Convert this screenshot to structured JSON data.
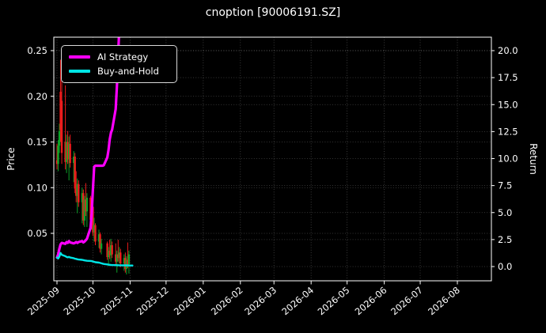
{
  "title": "cnoption [90006191.SZ]",
  "legend": {
    "items": [
      {
        "label": "AI Strategy",
        "color": "#ff00ff"
      },
      {
        "label": "Buy-and-Hold",
        "color": "#00e5e5"
      }
    ]
  },
  "axes": {
    "left_label": "Price",
    "right_label": "Return"
  },
  "colors": {
    "background": "#000000",
    "text": "#ffffff",
    "spine": "#ffffff",
    "grid": "#ffffff",
    "ai_strategy": "#ff00ff",
    "buy_and_hold": "#00e5e5",
    "candle_up": "#0ca328",
    "candle_down": "#ee1c1c"
  },
  "chart_data": {
    "type": "line",
    "title": "cnoption [90006191.SZ]",
    "xlabel": "",
    "ylabel_left": "Price",
    "ylabel_right": "Return",
    "grid": true,
    "legend_position": "upper left",
    "ylim_left": [
      0.0,
      0.265
    ],
    "ylim_right": [
      -1.3,
      21.2
    ],
    "yticks_left": [
      {
        "value": 0.05,
        "label": "0.05"
      },
      {
        "value": 0.1,
        "label": "0.10"
      },
      {
        "value": 0.15,
        "label": "0.15"
      },
      {
        "value": 0.2,
        "label": "0.20"
      },
      {
        "value": 0.25,
        "label": "0.25"
      }
    ],
    "yticks_right": [
      {
        "value": 0.0,
        "label": "0.0"
      },
      {
        "value": 2.5,
        "label": "2.5"
      },
      {
        "value": 5.0,
        "label": "5.0"
      },
      {
        "value": 7.5,
        "label": "7.5"
      },
      {
        "value": 10.0,
        "label": "10.0"
      },
      {
        "value": 12.5,
        "label": "12.5"
      },
      {
        "value": 15.0,
        "label": "15.0"
      },
      {
        "value": 17.5,
        "label": "17.5"
      },
      {
        "value": 20.0,
        "label": "20.0"
      }
    ],
    "x_ticks": [
      {
        "date": "2025-09-01",
        "label": "2025-09"
      },
      {
        "date": "2025-10-01",
        "label": "2025-10"
      },
      {
        "date": "2025-11-01",
        "label": "2025-11"
      },
      {
        "date": "2025-12-01",
        "label": "2025-12"
      },
      {
        "date": "2026-01-01",
        "label": "2026-01"
      },
      {
        "date": "2026-02-01",
        "label": "2026-02"
      },
      {
        "date": "2026-03-01",
        "label": "2026-03"
      },
      {
        "date": "2026-04-01",
        "label": "2026-04"
      },
      {
        "date": "2026-05-01",
        "label": "2026-05"
      },
      {
        "date": "2026-06-01",
        "label": "2026-06"
      },
      {
        "date": "2026-07-01",
        "label": "2026-07"
      },
      {
        "date": "2026-08-01",
        "label": "2026-08"
      }
    ],
    "series": [
      {
        "name": "AI Strategy",
        "color": "#ff00ff",
        "width": 3.2,
        "axis": "left",
        "points": [
          [
            "2025-09-01",
            0.0235
          ],
          [
            "2025-09-02",
            0.027
          ],
          [
            "2025-09-03",
            0.033
          ],
          [
            "2025-09-04",
            0.038
          ],
          [
            "2025-09-05",
            0.0395
          ],
          [
            "2025-09-08",
            0.0385
          ],
          [
            "2025-09-09",
            0.0405
          ],
          [
            "2025-09-10",
            0.0395
          ],
          [
            "2025-09-11",
            0.0415
          ],
          [
            "2025-09-12",
            0.04
          ],
          [
            "2025-09-15",
            0.039
          ],
          [
            "2025-09-16",
            0.0395
          ],
          [
            "2025-09-17",
            0.0405
          ],
          [
            "2025-09-18",
            0.0395
          ],
          [
            "2025-09-19",
            0.0405
          ],
          [
            "2025-09-22",
            0.0415
          ],
          [
            "2025-09-23",
            0.04
          ],
          [
            "2025-09-24",
            0.041
          ],
          [
            "2025-09-25",
            0.0425
          ],
          [
            "2025-09-26",
            0.044
          ],
          [
            "2025-09-29",
            0.056
          ],
          [
            "2025-09-30",
            0.072
          ],
          [
            "2025-10-01",
            0.098
          ],
          [
            "2025-10-02",
            0.123
          ],
          [
            "2025-10-03",
            0.124
          ],
          [
            "2025-10-06",
            0.124
          ],
          [
            "2025-10-07",
            0.124
          ],
          [
            "2025-10-08",
            0.124
          ],
          [
            "2025-10-09",
            0.124
          ],
          [
            "2025-10-10",
            0.1245
          ],
          [
            "2025-10-13",
            0.133
          ],
          [
            "2025-10-14",
            0.141
          ],
          [
            "2025-10-15",
            0.153
          ],
          [
            "2025-10-16",
            0.16
          ],
          [
            "2025-10-17",
            0.1635
          ],
          [
            "2025-10-20",
            0.186
          ],
          [
            "2025-10-21",
            0.212
          ],
          [
            "2025-10-22",
            0.246
          ],
          [
            "2025-10-23",
            0.275
          ],
          [
            "2025-10-24",
            0.295
          ],
          [
            "2025-10-27",
            0.305
          ]
        ]
      },
      {
        "name": "Buy-and-Hold",
        "color": "#00e5e5",
        "width": 2.4,
        "axis": "left",
        "points": [
          [
            "2025-09-01",
            0.0235
          ],
          [
            "2025-09-02",
            0.0225
          ],
          [
            "2025-09-03",
            0.0245
          ],
          [
            "2025-09-04",
            0.0285
          ],
          [
            "2025-09-05",
            0.0265
          ],
          [
            "2025-09-08",
            0.025
          ],
          [
            "2025-09-09",
            0.0242
          ],
          [
            "2025-09-10",
            0.0238
          ],
          [
            "2025-09-11",
            0.0242
          ],
          [
            "2025-09-12",
            0.0235
          ],
          [
            "2025-09-15",
            0.0228
          ],
          [
            "2025-09-16",
            0.0222
          ],
          [
            "2025-09-17",
            0.022
          ],
          [
            "2025-09-18",
            0.0216
          ],
          [
            "2025-09-19",
            0.0213
          ],
          [
            "2025-09-22",
            0.021
          ],
          [
            "2025-09-23",
            0.0207
          ],
          [
            "2025-09-24",
            0.0204
          ],
          [
            "2025-09-25",
            0.0202
          ],
          [
            "2025-09-26",
            0.02
          ],
          [
            "2025-09-29",
            0.0198
          ],
          [
            "2025-09-30",
            0.0196
          ],
          [
            "2025-10-01",
            0.0192
          ],
          [
            "2025-10-02",
            0.0188
          ],
          [
            "2025-10-03",
            0.0184
          ],
          [
            "2025-10-06",
            0.018
          ],
          [
            "2025-10-07",
            0.0176
          ],
          [
            "2025-10-08",
            0.0172
          ],
          [
            "2025-10-09",
            0.0168
          ],
          [
            "2025-10-10",
            0.0165
          ],
          [
            "2025-10-13",
            0.016
          ],
          [
            "2025-10-14",
            0.0157
          ],
          [
            "2025-10-15",
            0.0155
          ],
          [
            "2025-10-16",
            0.0154
          ],
          [
            "2025-10-17",
            0.0153
          ],
          [
            "2025-10-20",
            0.0152
          ],
          [
            "2025-10-21",
            0.0151
          ],
          [
            "2025-10-22",
            0.0151
          ],
          [
            "2025-10-23",
            0.015
          ],
          [
            "2025-10-24",
            0.015
          ],
          [
            "2025-10-27",
            0.015
          ],
          [
            "2025-10-28",
            0.0149
          ],
          [
            "2025-10-29",
            0.015
          ],
          [
            "2025-10-30",
            0.0149
          ],
          [
            "2025-10-31",
            0.0148
          ],
          [
            "2025-11-03",
            0.0148
          ]
        ]
      }
    ],
    "candles": {
      "up_color": "#0ca328",
      "down_color": "#ee1c1c",
      "columns": [
        "date",
        "open",
        "high",
        "low",
        "close"
      ],
      "ohlc": [
        [
          "2025-09-01",
          0.13,
          0.148,
          0.12,
          0.126
        ],
        [
          "2025-09-02",
          0.126,
          0.152,
          0.118,
          0.146
        ],
        [
          "2025-09-03",
          0.146,
          0.17,
          0.138,
          0.162
        ],
        [
          "2025-09-04",
          0.205,
          0.24,
          0.15,
          0.163
        ],
        [
          "2025-09-05",
          0.195,
          0.232,
          0.126,
          0.138
        ],
        [
          "2025-09-08",
          0.15,
          0.212,
          0.12,
          0.128
        ],
        [
          "2025-09-09",
          0.128,
          0.158,
          0.116,
          0.15
        ],
        [
          "2025-09-10",
          0.15,
          0.162,
          0.126,
          0.131
        ],
        [
          "2025-09-11",
          0.131,
          0.156,
          0.108,
          0.148
        ],
        [
          "2025-09-12",
          0.148,
          0.158,
          0.122,
          0.127
        ],
        [
          "2025-09-15",
          0.127,
          0.14,
          0.106,
          0.134
        ],
        [
          "2025-09-16",
          0.134,
          0.138,
          0.094,
          0.099
        ],
        [
          "2025-09-17",
          0.099,
          0.118,
          0.084,
          0.091
        ],
        [
          "2025-09-18",
          0.091,
          0.11,
          0.072,
          0.104
        ],
        [
          "2025-09-19",
          0.104,
          0.108,
          0.079,
          0.084
        ],
        [
          "2025-09-22",
          0.084,
          0.1,
          0.061,
          0.094
        ],
        [
          "2025-09-23",
          0.094,
          0.098,
          0.059,
          0.064
        ],
        [
          "2025-09-24",
          0.064,
          0.091,
          0.057,
          0.087
        ],
        [
          "2025-09-25",
          0.087,
          0.105,
          0.069,
          0.074
        ],
        [
          "2025-09-26",
          0.074,
          0.094,
          0.057,
          0.089
        ],
        [
          "2025-09-29",
          0.089,
          0.091,
          0.061,
          0.065
        ],
        [
          "2025-09-30",
          0.065,
          0.084,
          0.054,
          0.079
        ],
        [
          "2025-10-01",
          0.079,
          0.081,
          0.047,
          0.051
        ],
        [
          "2025-10-02",
          0.051,
          0.067,
          0.041,
          0.059
        ],
        [
          "2025-10-03",
          0.059,
          0.061,
          0.037,
          0.041
        ],
        [
          "2025-10-06",
          0.041,
          0.054,
          0.034,
          0.049
        ],
        [
          "2025-10-07",
          0.049,
          0.051,
          0.029,
          0.033
        ],
        [
          "2025-10-08",
          0.033,
          0.044,
          0.027,
          0.039
        ],
        [
          "2025-10-13",
          0.039,
          0.041,
          0.021,
          0.024
        ],
        [
          "2025-10-14",
          0.024,
          0.035,
          0.014,
          0.031
        ],
        [
          "2025-10-15",
          0.031,
          0.043,
          0.022,
          0.026
        ],
        [
          "2025-10-16",
          0.026,
          0.044,
          0.019,
          0.037
        ],
        [
          "2025-10-17",
          0.037,
          0.041,
          0.023,
          0.027
        ],
        [
          "2025-10-20",
          0.027,
          0.039,
          0.015,
          0.019
        ],
        [
          "2025-10-21",
          0.019,
          0.031,
          0.007,
          0.027
        ],
        [
          "2025-10-22",
          0.027,
          0.043,
          0.019,
          0.023
        ],
        [
          "2025-10-23",
          0.023,
          0.035,
          0.017,
          0.029
        ],
        [
          "2025-10-24",
          0.029,
          0.033,
          0.013,
          0.017
        ],
        [
          "2025-10-27",
          0.017,
          0.027,
          0.009,
          0.023
        ],
        [
          "2025-10-28",
          0.023,
          0.029,
          0.007,
          0.011
        ],
        [
          "2025-10-29",
          0.011,
          0.025,
          0.005,
          0.021
        ],
        [
          "2025-10-30",
          0.021,
          0.04,
          0.012,
          0.016
        ],
        [
          "2025-10-31",
          0.016,
          0.031,
          0.006,
          0.027
        ]
      ]
    }
  }
}
